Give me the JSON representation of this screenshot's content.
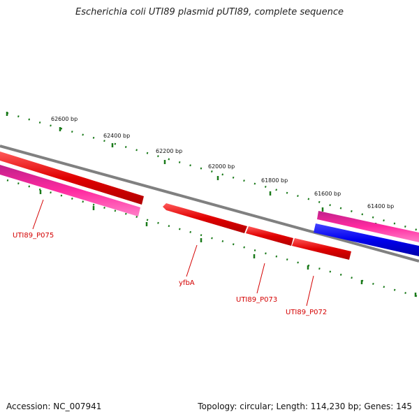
{
  "title": "Escherichia coli UTI89 plasmid pUTI89, complete sequence",
  "accession": "Accession: NC_007941",
  "topology": "Topology: circular; Length: 114,230 bp; Genes: 145",
  "ticks": [
    "62600 bp",
    "62400 bp",
    "62200 bp",
    "62000 bp",
    "61800 bp",
    "61600 bp",
    "61400 bp"
  ],
  "genes": [
    "UTI89_P075",
    "yfbA",
    "UTI89_P073",
    "UTI89_P072"
  ],
  "colors": {
    "backbone": "#808080",
    "forward_gene": "#e00000",
    "reverse_gene": "#ff2aa0",
    "special_gene": "#0000ee",
    "tick": "#1a7a1a",
    "label": "#d40000"
  }
}
